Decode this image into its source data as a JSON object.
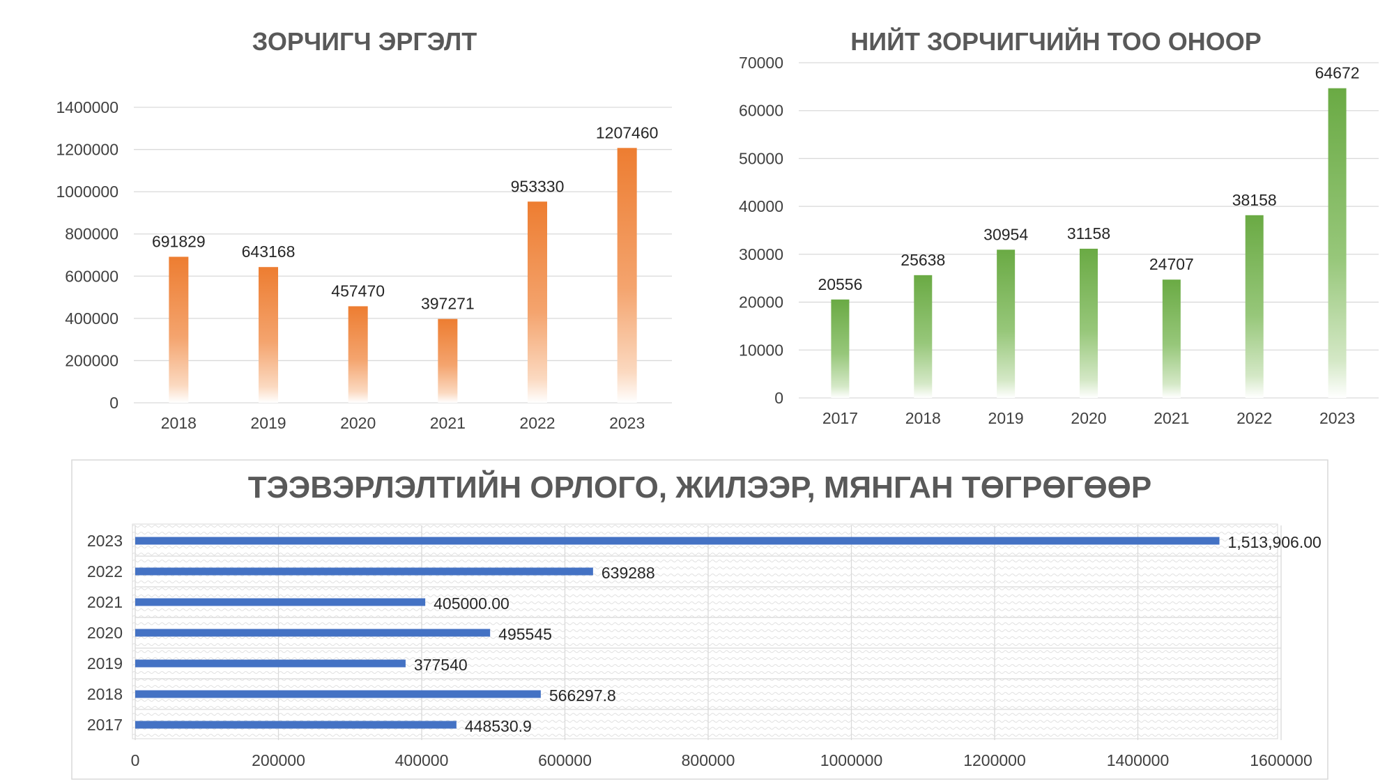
{
  "chart_data": [
    {
      "type": "bar",
      "title": "ЗОРЧИГЧ ЭРГЭЛТ",
      "categories": [
        "2018",
        "2019",
        "2020",
        "2021",
        "2022",
        "2023"
      ],
      "values": [
        691829,
        643168,
        457470,
        397271,
        953330,
        1207460
      ],
      "value_labels": [
        "691829",
        "643168",
        "457470",
        "397271",
        "953330",
        "1207460"
      ],
      "ylim": [
        0,
        1400000
      ],
      "yticks": [
        "0",
        "200000",
        "400000",
        "600000",
        "800000",
        "1000000",
        "1200000",
        "1400000"
      ],
      "grid": true,
      "color": "#ED7D31"
    },
    {
      "type": "bar",
      "title": "НИЙТ ЗОРЧИГЧИЙН ТОО ОНООР",
      "categories": [
        "2017",
        "2018",
        "2019",
        "2020",
        "2021",
        "2022",
        "2023"
      ],
      "values": [
        20556,
        25638,
        30954,
        31158,
        24707,
        38158,
        64672
      ],
      "value_labels": [
        "20556",
        "25638",
        "30954",
        "31158",
        "24707",
        "38158",
        "64672"
      ],
      "ylim": [
        0,
        70000
      ],
      "yticks": [
        "0",
        "10000",
        "20000",
        "30000",
        "40000",
        "50000",
        "60000",
        "70000"
      ],
      "grid": true,
      "color": "#70AD47"
    },
    {
      "type": "bar",
      "orientation": "horizontal",
      "title": "ТЭЭВЭРЛЭЛТИЙН ОРЛОГО, ЖИЛЭЭР, МЯНГАН ТӨГРӨГӨӨР",
      "categories": [
        "2023",
        "2022",
        "2021",
        "2020",
        "2019",
        "2018",
        "2017"
      ],
      "values": [
        1513906.0,
        639288,
        405000.0,
        495545,
        377540,
        566297.8,
        448530.9
      ],
      "value_labels": [
        "1,513,906.00",
        "639288",
        "405000.00",
        "495545",
        "377540",
        "566297.8",
        "448530.9"
      ],
      "xlim": [
        0,
        1600000
      ],
      "xticks": [
        "0",
        "200000",
        "400000",
        "600000",
        "800000",
        "1000000",
        "1200000",
        "1400000",
        "1600000"
      ],
      "grid": true,
      "color": "#4472C4"
    }
  ]
}
